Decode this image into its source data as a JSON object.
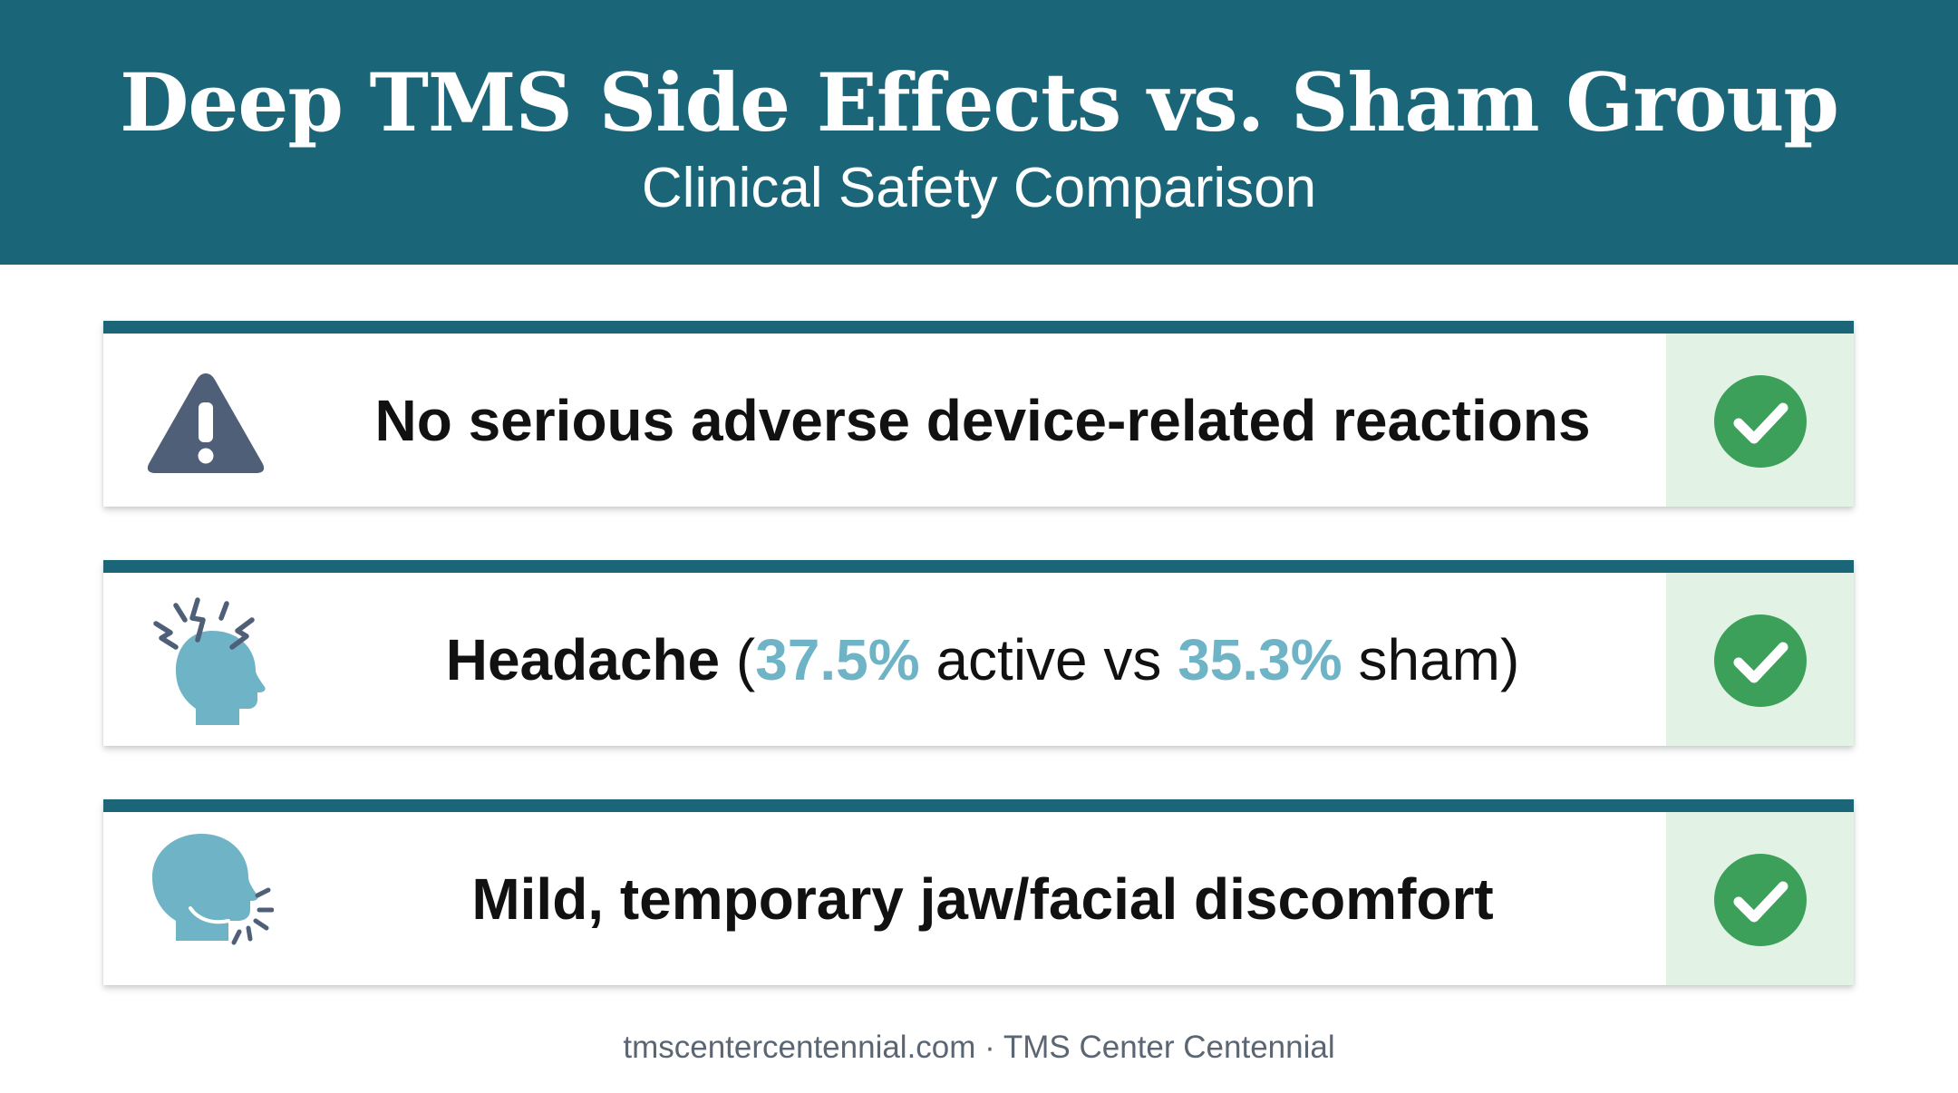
{
  "header": {
    "title": "Deep TMS Side Effects vs. Sham Group",
    "subtitle": "Clinical Safety Comparison",
    "background_color": "#1a6678"
  },
  "rows": [
    {
      "icon": "warning-triangle-icon",
      "text": "No serious adverse device-related reactions",
      "status_icon": "checkmark-icon"
    },
    {
      "icon": "headache-head-icon",
      "label": "Headache",
      "open_paren": " (",
      "active_value": "37.5%",
      "active_label": " active vs ",
      "sham_value": "35.3%",
      "sham_label": " sham)",
      "status_icon": "checkmark-icon"
    },
    {
      "icon": "jaw-discomfort-head-icon",
      "text": "Mild, temporary jaw/facial discomfort",
      "status_icon": "checkmark-icon"
    }
  ],
  "footer": {
    "text": "tmscentercentennial.com · TMS Center Centennial"
  },
  "colors": {
    "accent_teal": "#1a6678",
    "highlight_light_blue": "#6fb4c6",
    "check_green": "#3ca05a",
    "check_cell_bg": "#e2f3e5",
    "warning_slate": "#4f5f78"
  }
}
